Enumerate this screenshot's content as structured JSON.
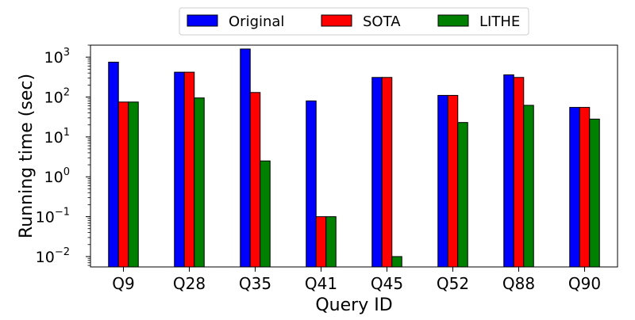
{
  "chart_data": {
    "type": "bar",
    "title": "",
    "xlabel": "Query ID",
    "ylabel": "Running time (sec)",
    "yscale": "log",
    "ylim": [
      0.0055,
      2000
    ],
    "yticks": [
      {
        "value": 0.01,
        "base": "10",
        "exp": "−2"
      },
      {
        "value": 0.1,
        "base": "10",
        "exp": "−1"
      },
      {
        "value": 1,
        "base": "10",
        "exp": "0"
      },
      {
        "value": 10,
        "base": "10",
        "exp": "1"
      },
      {
        "value": 100,
        "base": "10",
        "exp": "2"
      },
      {
        "value": 1000,
        "base": "10",
        "exp": "3"
      }
    ],
    "categories": [
      "Q9",
      "Q28",
      "Q35",
      "Q41",
      "Q45",
      "Q52",
      "Q88",
      "Q90"
    ],
    "series": [
      {
        "name": "Original",
        "color": "#0000ff",
        "values": [
          750,
          420,
          1600,
          80,
          310,
          110,
          360,
          55
        ]
      },
      {
        "name": "SOTA",
        "color": "#ff0000",
        "values": [
          75,
          420,
          130,
          0.1,
          310,
          110,
          310,
          55
        ]
      },
      {
        "name": "LITHE",
        "color": "#008000",
        "values": [
          75,
          95,
          2.5,
          0.1,
          0.01,
          23,
          62,
          28
        ]
      }
    ],
    "legend": "top-center, horizontal, outside plot",
    "grid": false
  }
}
